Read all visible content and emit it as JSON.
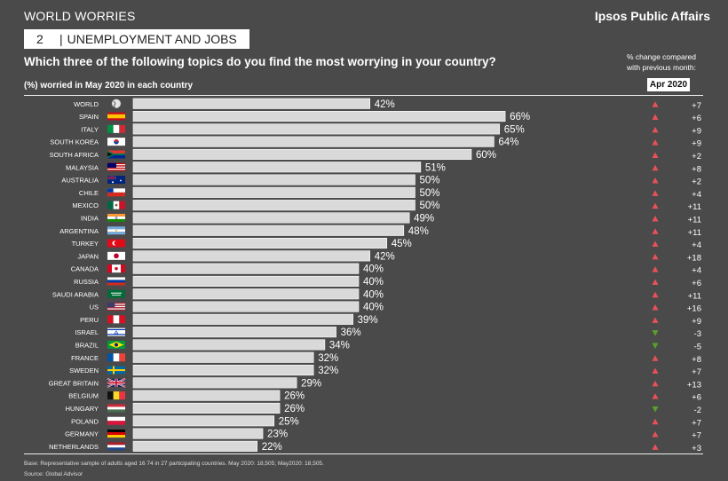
{
  "header": {
    "section": "WORLD WORRIES",
    "brand": "Ipsos Public Affairs"
  },
  "topic": {
    "number": "2",
    "label": "UNEMPLOYMENT AND JOBS"
  },
  "question": "Which three of the following topics do you find the most worrying in your country?",
  "subtitle": "(%) worried in May 2020 in each country",
  "change_note": "% change compared with previous month:",
  "compare_month": "Apr 2020",
  "footer": {
    "base": "Base: Representative sample of adults aged 16 74 in 27 participating countries. May 2020: 18,505; May2020: 18,505.",
    "source": "Source: Global Advisor"
  },
  "colors": {
    "background": "#4a4a4a",
    "bar": "#d9d9d9",
    "up": "#e8515a",
    "down": "#5aa02c"
  },
  "chart_data": {
    "type": "bar",
    "orientation": "horizontal",
    "title": "Which three of the following topics do you find the most worrying in your country?",
    "xlabel": "(%) worried in May 2020 in each country",
    "xlim": [
      0,
      100
    ],
    "grid": false,
    "categories": [
      "WORLD",
      "SPAIN",
      "ITALY",
      "SOUTH KOREA",
      "SOUTH AFRICA",
      "MALAYSIA",
      "AUSTRALIA",
      "CHILE",
      "MEXICO",
      "INDIA",
      "ARGENTINA",
      "TURKEY",
      "JAPAN",
      "CANADA",
      "RUSSIA",
      "SAUDI ARABIA",
      "US",
      "PERU",
      "ISRAEL",
      "BRAZIL",
      "FRANCE",
      "SWEDEN",
      "GREAT BRITAIN",
      "BELGIUM",
      "HUNGARY",
      "POLAND",
      "GERMANY",
      "NETHERLANDS"
    ],
    "values": [
      42,
      66,
      65,
      64,
      60,
      51,
      50,
      50,
      50,
      49,
      48,
      45,
      42,
      40,
      40,
      40,
      40,
      39,
      36,
      34,
      32,
      32,
      29,
      26,
      26,
      25,
      23,
      22
    ],
    "value_labels": [
      "42%",
      "66%",
      "65%",
      "64%",
      "60%",
      "51%",
      "50%",
      "50%",
      "50%",
      "49%",
      "48%",
      "45%",
      "42%",
      "40%",
      "40%",
      "40%",
      "40%",
      "39%",
      "36%",
      "34%",
      "32%",
      "32%",
      "29%",
      "26%",
      "26%",
      "25%",
      "23%",
      "22%"
    ],
    "change": [
      "+7",
      "+6",
      "+9",
      "+9",
      "+2",
      "+8",
      "+2",
      "+4",
      "+11",
      "+11",
      "+11",
      "+4",
      "+18",
      "+4",
      "+6",
      "+11",
      "+16",
      "+9",
      "-3",
      "-5",
      "+8",
      "+7",
      "+13",
      "+6",
      "-2",
      "+7",
      "+7",
      "+3"
    ],
    "direction": [
      "up",
      "up",
      "up",
      "up",
      "up",
      "up",
      "up",
      "up",
      "up",
      "up",
      "up",
      "up",
      "up",
      "up",
      "up",
      "up",
      "up",
      "up",
      "down",
      "down",
      "up",
      "up",
      "up",
      "up",
      "down",
      "up",
      "up",
      "up"
    ],
    "flags": [
      "globe",
      "spain",
      "italy",
      "south-korea",
      "south-africa",
      "malaysia",
      "australia",
      "chile",
      "mexico",
      "india",
      "argentina",
      "turkey",
      "japan",
      "canada",
      "russia",
      "saudi-arabia",
      "us",
      "peru",
      "israel",
      "brazil",
      "france",
      "sweden",
      "great-britain",
      "belgium",
      "hungary",
      "poland",
      "germany",
      "netherlands"
    ]
  }
}
